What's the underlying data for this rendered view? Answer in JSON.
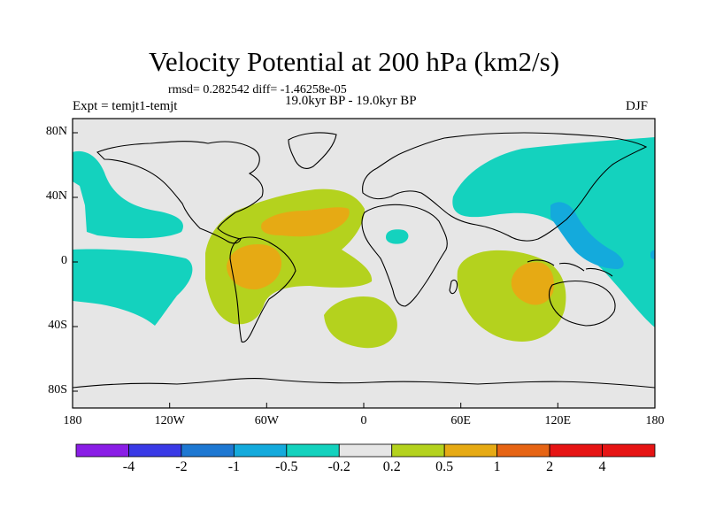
{
  "title": "Velocity Potential at 200 hPa (km2/s)",
  "stats_line": "rmsd= 0.282542 diff= -1.46258e-05",
  "experiment_label": "Expt = temjt1-temjt",
  "period_label": "19.0kyr BP - 19.0kyr BP",
  "season_label": "DJF",
  "y_axis_ticks": [
    "80N",
    "40N",
    "0",
    "40S",
    "80S"
  ],
  "x_axis_ticks": [
    "180",
    "120W",
    "60W",
    "0",
    "60E",
    "120E",
    "180"
  ],
  "colorbar": {
    "labels": [
      "-4",
      "-2",
      "-1",
      "-0.5",
      "-0.2",
      "0.2",
      "0.5",
      "1",
      "2",
      "4"
    ],
    "colors": [
      "#8a1ee6",
      "#3a3ae6",
      "#1e78d2",
      "#14aadc",
      "#14d2be",
      "#e6e6e6",
      "#b4d21e",
      "#e6aa14",
      "#e66414",
      "#e61414"
    ]
  }
}
